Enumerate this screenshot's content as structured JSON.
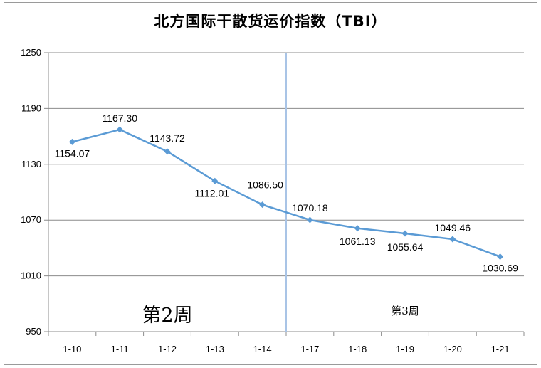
{
  "chart_data": {
    "type": "line",
    "title": "北方国际干散货运价指数（TBI）",
    "categories": [
      "1-10",
      "1-11",
      "1-12",
      "1-13",
      "1-14",
      "1-17",
      "1-18",
      "1-19",
      "1-20",
      "1-21"
    ],
    "series": [
      {
        "values": [
          1154.07,
          1167.3,
          1143.72,
          1112.01,
          1086.5,
          1070.18,
          1061.13,
          1055.64,
          1049.46,
          1030.69
        ]
      }
    ],
    "data_labels": [
      "1154.07",
      "1167.30",
      "1143.72",
      "1112.01",
      "1086.50",
      "1070.18",
      "1061.13",
      "1055.64",
      "1049.46",
      "1030.69"
    ],
    "y_ticks": [
      "950",
      "1010",
      "1070",
      "1130",
      "1190",
      "1250"
    ],
    "ylim": [
      950,
      1250
    ],
    "grid": true,
    "line_color": "#5b9bd5",
    "annotations": [
      {
        "text": "第2周"
      },
      {
        "text": "第3周"
      }
    ]
  }
}
